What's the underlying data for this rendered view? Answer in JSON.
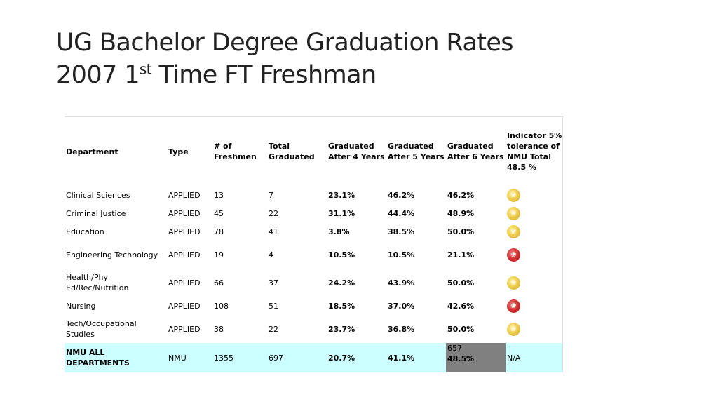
{
  "slide": {
    "title_line1": "UG Bachelor Degree Graduation Rates",
    "title_line2_pre": "2007 1",
    "title_line2_sup": "st",
    "title_line2_post": " Time FT Freshman"
  },
  "table": {
    "headers": {
      "department": "Department",
      "type": "Type",
      "freshmen": "# of Freshmen",
      "total_graduated": "Total Graduated",
      "after4": "Graduated After 4 Years",
      "after5": "Graduated After 5 Years",
      "after6": "Graduated After 6 Years",
      "indicator": "Indicator 5% tolerance of NMU Total 48.5 %"
    },
    "rows": [
      {
        "department": "Clinical Sciences",
        "type": "APPLIED",
        "freshmen": "13",
        "total": "7",
        "after4": "23.1%",
        "after5": "46.2%",
        "after6": "46.2%",
        "indicator": "gold"
      },
      {
        "department": "Criminal Justice",
        "type": "APPLIED",
        "freshmen": "45",
        "total": "22",
        "after4": "31.1%",
        "after5": "44.4%",
        "after6": "48.9%",
        "indicator": "gold"
      },
      {
        "department": "Education",
        "type": "APPLIED",
        "freshmen": "78",
        "total": "41",
        "after4": "3.8%",
        "after5": "38.5%",
        "after6": "50.0%",
        "indicator": "gold"
      },
      {
        "department": "Engineering Technology",
        "type": "APPLIED",
        "freshmen": "19",
        "total": "4",
        "after4": "10.5%",
        "after5": "10.5%",
        "after6": "21.1%",
        "indicator": "red"
      },
      {
        "department": "Health/Phy Ed/Rec/Nutrition",
        "type": "APPLIED",
        "freshmen": "66",
        "total": "37",
        "after4": "24.2%",
        "after5": "43.9%",
        "after6": "50.0%",
        "indicator": "gold"
      },
      {
        "department": "Nursing",
        "type": "APPLIED",
        "freshmen": "108",
        "total": "51",
        "after4": "18.5%",
        "after5": "37.0%",
        "after6": "42.6%",
        "indicator": "red"
      },
      {
        "department": "Tech/Occupational Studies",
        "type": "APPLIED",
        "freshmen": "38",
        "total": "22",
        "after4": "23.7%",
        "after5": "36.8%",
        "after6": "50.0%",
        "indicator": "gold"
      }
    ],
    "total_row": {
      "department": "NMU ALL DEPARTMENTS",
      "type": "NMU",
      "freshmen": "1355",
      "total": "697",
      "after4": "20.7%",
      "after5": "41.1%",
      "after6_count": "657",
      "after6_pct": "48.5%",
      "indicator": "N/A"
    },
    "indicator_icon": "paw-medal-icon",
    "colors": {
      "gold": "#e8c53a",
      "red": "#c62828",
      "total_row_bg": "#ccffff",
      "highlight_cell": "#808080"
    }
  }
}
